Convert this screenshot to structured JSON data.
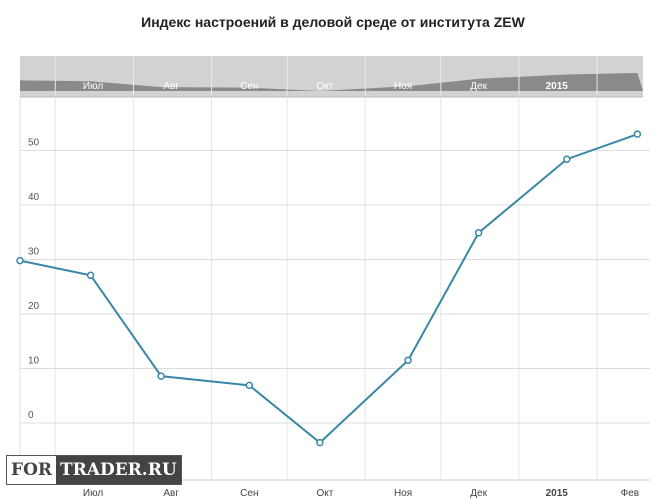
{
  "chart_data": {
    "type": "line",
    "title": "Индекс настроений в деловой среде от института ZEW",
    "x": [
      "2014-06-17",
      "2014-07-15",
      "2014-08-12",
      "2014-09-16",
      "2014-10-14",
      "2014-11-18",
      "2014-12-16",
      "2015-01-20",
      "2015-02-17"
    ],
    "values": [
      29.8,
      27.1,
      8.6,
      6.9,
      -3.6,
      11.5,
      34.9,
      48.4,
      53.0
    ],
    "ylim": [
      -10,
      60
    ],
    "yticks": [
      0,
      10,
      20,
      30,
      40,
      50
    ],
    "xtick_labels": [
      "Июл",
      "Авг",
      "Сен",
      "Окт",
      "Ноя",
      "Дек",
      "2015",
      "Фев"
    ],
    "navigator_labels": [
      "Июл",
      "Авг",
      "Сен",
      "Окт",
      "Ноя",
      "Дек",
      "2015"
    ],
    "grid": true,
    "line_color": "#3a87a8"
  },
  "watermark": {
    "part1": "FOR",
    "part2": "TRADER.RU"
  }
}
